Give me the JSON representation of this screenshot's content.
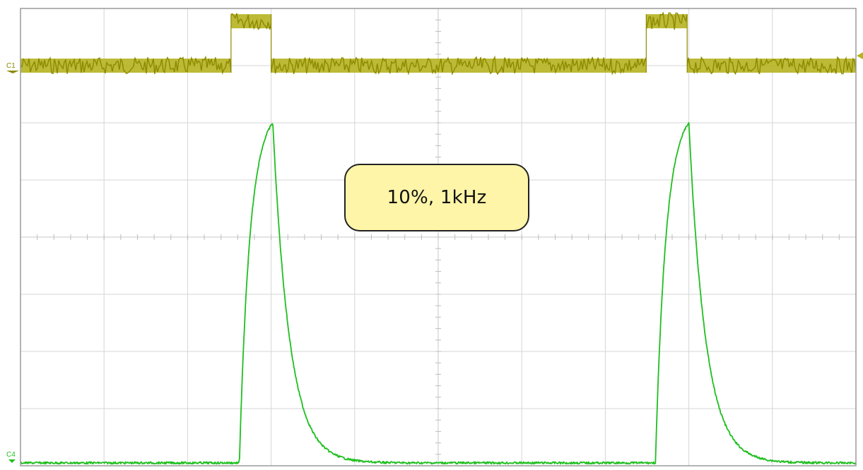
{
  "chart_data": {
    "type": "line",
    "title": "",
    "annotation": "10%, 1kHz",
    "grid": true,
    "grid_divisions": {
      "x": 10,
      "y": 8
    },
    "colors": {
      "channel1": "#8c8a00",
      "channel1_fill": "#b5b320",
      "channel4": "#1fbf1f",
      "grid": "#d6d6d6"
    },
    "series": [
      {
        "name": "C1",
        "kind": "pulse",
        "low_div": 1.0,
        "high_div": 0.1,
        "pulses_div": [
          [
            2.52,
            3.0
          ],
          [
            7.49,
            7.98
          ]
        ]
      },
      {
        "name": "C4",
        "kind": "exponential-pulse",
        "baseline_div": 7.95,
        "peak_div": 2.0,
        "events_div": [
          {
            "start": 2.62,
            "peak": 3.02,
            "decay_end": 4.0
          },
          {
            "start": 7.6,
            "peak": 8.0,
            "decay_end": 9.0
          }
        ]
      }
    ],
    "channel_labels": [
      "C1",
      "C4"
    ]
  }
}
